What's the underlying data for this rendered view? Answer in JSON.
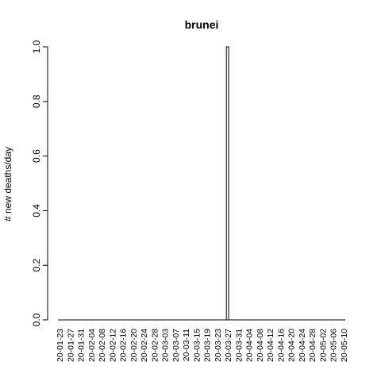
{
  "chart_data": {
    "type": "bar",
    "title": "brunei",
    "xlabel": "",
    "ylabel": "# new deaths/day",
    "ylim": [
      0,
      1.0
    ],
    "yticks": [
      "0.0",
      "0.2",
      "0.4",
      "0.6",
      "0.8",
      "1.0"
    ],
    "xtick_labels": [
      "20-01-23",
      "20-01-27",
      "20-01-31",
      "20-02-04",
      "20-02-08",
      "20-02-12",
      "20-02-16",
      "20-02-20",
      "20-02-24",
      "20-02-28",
      "20-03-03",
      "20-03-07",
      "20-03-11",
      "20-03-15",
      "20-03-19",
      "20-03-23",
      "20-03-27",
      "20-03-31",
      "20-04-04",
      "20-04-08",
      "20-04-12",
      "20-04-16",
      "20-04-20",
      "20-04-24",
      "20-04-28",
      "20-05-02",
      "20-05-06",
      "20-05-10"
    ],
    "categories": [
      "20-01-23",
      "20-01-24",
      "20-01-25",
      "20-01-26",
      "20-01-27",
      "20-01-28",
      "20-01-29",
      "20-01-30",
      "20-01-31",
      "20-02-01",
      "20-02-02",
      "20-02-03",
      "20-02-04",
      "20-02-05",
      "20-02-06",
      "20-02-07",
      "20-02-08",
      "20-02-09",
      "20-02-10",
      "20-02-11",
      "20-02-12",
      "20-02-13",
      "20-02-14",
      "20-02-15",
      "20-02-16",
      "20-02-17",
      "20-02-18",
      "20-02-19",
      "20-02-20",
      "20-02-21",
      "20-02-22",
      "20-02-23",
      "20-02-24",
      "20-02-25",
      "20-02-26",
      "20-02-27",
      "20-02-28",
      "20-02-29",
      "20-03-01",
      "20-03-02",
      "20-03-03",
      "20-03-04",
      "20-03-05",
      "20-03-06",
      "20-03-07",
      "20-03-08",
      "20-03-09",
      "20-03-10",
      "20-03-11",
      "20-03-12",
      "20-03-13",
      "20-03-14",
      "20-03-15",
      "20-03-16",
      "20-03-17",
      "20-03-18",
      "20-03-19",
      "20-03-20",
      "20-03-21",
      "20-03-22",
      "20-03-23",
      "20-03-24",
      "20-03-25",
      "20-03-26",
      "20-03-27",
      "20-03-28",
      "20-03-29",
      "20-03-30",
      "20-03-31",
      "20-04-01",
      "20-04-02",
      "20-04-03",
      "20-04-04",
      "20-04-05",
      "20-04-06",
      "20-04-07",
      "20-04-08",
      "20-04-09",
      "20-04-10",
      "20-04-11",
      "20-04-12",
      "20-04-13",
      "20-04-14",
      "20-04-15",
      "20-04-16",
      "20-04-17",
      "20-04-18",
      "20-04-19",
      "20-04-20",
      "20-04-21",
      "20-04-22",
      "20-04-23",
      "20-04-24",
      "20-04-25",
      "20-04-26",
      "20-04-27",
      "20-04-28",
      "20-04-29",
      "20-04-30",
      "20-05-01",
      "20-05-02",
      "20-05-03",
      "20-05-04",
      "20-05-05",
      "20-05-06",
      "20-05-07",
      "20-05-08",
      "20-05-09",
      "20-05-10",
      "20-05-11",
      "20-05-12"
    ],
    "values": [
      0,
      0,
      0,
      0,
      0,
      0,
      0,
      0,
      0,
      0,
      0,
      0,
      0,
      0,
      0,
      0,
      0,
      0,
      0,
      0,
      0,
      0,
      0,
      0,
      0,
      0,
      0,
      0,
      0,
      0,
      0,
      0,
      0,
      0,
      0,
      0,
      0,
      0,
      0,
      0,
      0,
      0,
      0,
      0,
      0,
      0,
      0,
      0,
      0,
      0,
      0,
      0,
      0,
      0,
      0,
      0,
      0,
      0,
      0,
      0,
      0,
      0,
      0,
      0,
      0,
      1,
      0,
      0,
      0,
      0,
      0,
      0,
      0,
      0,
      0,
      0,
      0,
      0,
      0,
      0,
      0,
      0,
      0,
      0,
      0,
      0,
      0,
      0,
      0,
      0,
      0,
      0,
      0,
      0,
      0,
      0,
      0,
      0,
      0,
      0,
      0,
      0,
      0,
      0,
      0,
      0,
      0,
      0,
      0,
      0,
      0
    ],
    "grid": false,
    "legend": "none",
    "bar_color": "#ffffff",
    "bar_stroke": "#000000"
  }
}
